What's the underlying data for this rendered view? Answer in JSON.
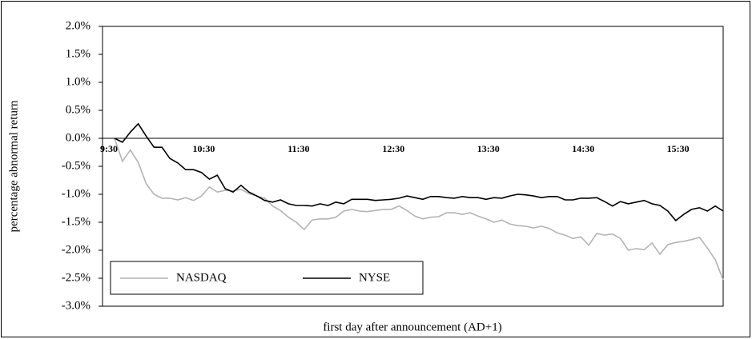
{
  "chart_data": {
    "type": "line",
    "y_label": "percentage abnormal return",
    "x_label": "first day after announcement (AD+1)",
    "categories": [
      "9:30",
      null,
      null,
      null,
      null,
      null,
      null,
      null,
      null,
      null,
      null,
      null,
      "10:30",
      null,
      null,
      null,
      null,
      null,
      null,
      null,
      null,
      null,
      null,
      null,
      "11:30",
      null,
      null,
      null,
      null,
      null,
      null,
      null,
      null,
      null,
      null,
      null,
      "12:30",
      null,
      null,
      null,
      null,
      null,
      null,
      null,
      null,
      null,
      null,
      null,
      "13:30",
      null,
      null,
      null,
      null,
      null,
      null,
      null,
      null,
      null,
      null,
      null,
      "14:30",
      null,
      null,
      null,
      null,
      null,
      null,
      null,
      null,
      null,
      null,
      null,
      "15:30",
      null,
      null,
      null,
      null,
      null
    ],
    "series": [
      {
        "name": "NASDAQ",
        "color": "#b4b4b4",
        "values": [
          0,
          -0.41,
          -0.21,
          -0.43,
          -0.81,
          -1.0,
          -1.07,
          -1.07,
          -1.1,
          -1.06,
          -1.11,
          -1.03,
          -0.87,
          -0.96,
          -0.93,
          -0.94,
          -0.91,
          -0.99,
          -1.03,
          -1.07,
          -1.21,
          -1.29,
          -1.41,
          -1.5,
          -1.63,
          -1.46,
          -1.44,
          -1.44,
          -1.41,
          -1.3,
          -1.27,
          -1.3,
          -1.31,
          -1.29,
          -1.27,
          -1.27,
          -1.21,
          -1.29,
          -1.39,
          -1.44,
          -1.41,
          -1.4,
          -1.33,
          -1.33,
          -1.36,
          -1.33,
          -1.39,
          -1.44,
          -1.5,
          -1.46,
          -1.53,
          -1.56,
          -1.57,
          -1.6,
          -1.57,
          -1.61,
          -1.69,
          -1.73,
          -1.79,
          -1.76,
          -1.91,
          -1.7,
          -1.73,
          -1.71,
          -1.79,
          -2.0,
          -1.97,
          -1.99,
          -1.87,
          -2.07,
          -1.9,
          -1.86,
          -1.84,
          -1.81,
          -1.77,
          -1.96,
          -2.17,
          -2.53
        ]
      },
      {
        "name": "NYSE",
        "color": "#000000",
        "values": [
          0,
          -0.07,
          0.11,
          0.26,
          0.04,
          -0.16,
          -0.16,
          -0.36,
          -0.44,
          -0.56,
          -0.56,
          -0.61,
          -0.73,
          -0.66,
          -0.9,
          -0.96,
          -0.84,
          -0.96,
          -1.03,
          -1.11,
          -1.14,
          -1.1,
          -1.17,
          -1.2,
          -1.2,
          -1.21,
          -1.17,
          -1.2,
          -1.14,
          -1.17,
          -1.09,
          -1.09,
          -1.09,
          -1.11,
          -1.1,
          -1.09,
          -1.07,
          -1.03,
          -1.06,
          -1.09,
          -1.04,
          -1.04,
          -1.06,
          -1.07,
          -1.04,
          -1.06,
          -1.06,
          -1.09,
          -1.06,
          -1.07,
          -1.03,
          -1.0,
          -1.01,
          -1.03,
          -1.06,
          -1.04,
          -1.04,
          -1.1,
          -1.1,
          -1.07,
          -1.07,
          -1.06,
          -1.13,
          -1.21,
          -1.13,
          -1.17,
          -1.14,
          -1.11,
          -1.17,
          -1.2,
          -1.3,
          -1.47,
          -1.36,
          -1.27,
          -1.24,
          -1.3,
          -1.21,
          -1.3
        ]
      }
    ],
    "ylim": [
      -3.0,
      2.0
    ],
    "yticks": [
      {
        "value": -3.0,
        "label": "-3.0%"
      },
      {
        "value": -2.5,
        "label": "-2.5%"
      },
      {
        "value": -2.0,
        "label": "-2.0%"
      },
      {
        "value": -1.5,
        "label": "-1.5%"
      },
      {
        "value": -1.0,
        "label": "-1.0%"
      },
      {
        "value": -0.5,
        "label": "-0.5%"
      },
      {
        "value": 0.0,
        "label": "0.0%"
      },
      {
        "value": 0.5,
        "label": "0.5%"
      },
      {
        "value": 1.0,
        "label": "1.0%"
      },
      {
        "value": 1.5,
        "label": "1.5%"
      },
      {
        "value": 2.0,
        "label": "2.0%"
      }
    ],
    "legend": "lower left"
  }
}
